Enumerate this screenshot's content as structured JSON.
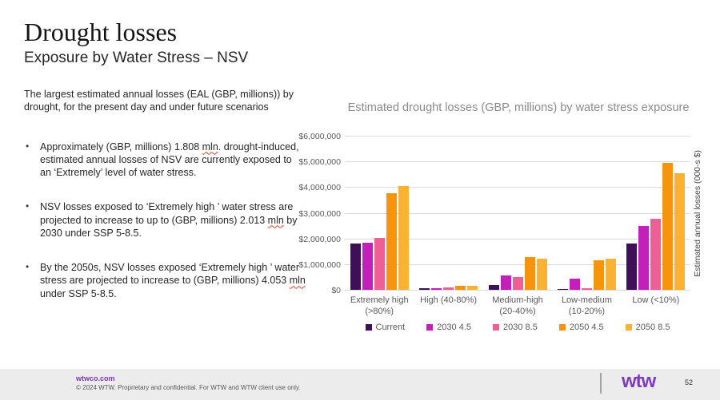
{
  "slide": {
    "title": "Drought losses",
    "subtitle": "Exposure by Water Stress – NSV"
  },
  "left_panel": {
    "intro": "The largest estimated annual losses (EAL (GBP, millions)) by drought, for the present day and under future scenarios",
    "bullets": [
      {
        "segments": [
          {
            "text": "Approximately (GBP, millions) 1.808 "
          },
          {
            "text": "mln",
            "spellcheck": true
          },
          {
            "text": ".  drought-induced, estimated annual losses of NSV are currently exposed to an ‘Extremely’ level of water stress."
          }
        ]
      },
      {
        "segments": [
          {
            "text": "NSV losses exposed to ‘Extremely high ’ water stress are projected to increase to up to (GBP, millions) 2.013 "
          },
          {
            "text": "mln",
            "spellcheck": true
          },
          {
            "text": "  by 2030  under SSP 5-8.5."
          }
        ]
      },
      {
        "segments": [
          {
            "text": "By the 2050s, NSV losses exposed ‘Extremely high ’ water stress are projected to increase to (GBP, millions) 4.053 "
          },
          {
            "text": "mln",
            "spellcheck": true
          },
          {
            "text": " under SSP 5-8.5."
          }
        ]
      }
    ]
  },
  "chart_data": {
    "type": "bar",
    "title": "Estimated drought losses (GBP, millions) by water stress exposure",
    "ylabel_right": "Estimated annual losses (000-s $)",
    "ymax": 6000000,
    "ytick_step": 1000000,
    "ytick_labels": [
      "$6,000,000",
      "$5,000,000",
      "$4,000,000",
      "$3,000,000",
      "$2,000,000",
      "$1,000,000",
      "$0"
    ],
    "grid": true,
    "legend_position": "bottom",
    "categories": [
      "Extremely high (>80%)",
      "High (40-80%)",
      "Medium-high (20-40%)",
      "Low-medium (10-20%)",
      "Low (<10%)"
    ],
    "category_label_lines": [
      [
        "Extremely high",
        "(>80%)"
      ],
      [
        "High (40-80%)"
      ],
      [
        "Medium-high",
        "(20-40%)"
      ],
      [
        "Low-medium",
        "(10-20%)"
      ],
      [
        "Low (<10%)"
      ]
    ],
    "series": [
      {
        "name": "Current",
        "color": "#3f1057",
        "values": [
          1808000,
          50000,
          200000,
          20000,
          1800000
        ]
      },
      {
        "name": "2030 4.5",
        "color": "#c320bb",
        "values": [
          1820000,
          60000,
          550000,
          450000,
          2490000
        ]
      },
      {
        "name": "2030 8.5",
        "color": "#ee6095",
        "values": [
          2013000,
          80000,
          500000,
          60000,
          2770000
        ]
      },
      {
        "name": "2050 4.5",
        "color": "#f7940d",
        "values": [
          3760000,
          160000,
          1280000,
          1150000,
          4950000
        ]
      },
      {
        "name": "2050 8.5",
        "color": "#fbb232",
        "values": [
          4053000,
          160000,
          1220000,
          1200000,
          4550000
        ]
      }
    ]
  },
  "footer": {
    "url": "wtwco.com",
    "copyright": "© 2024 WTW. Proprietary and confidential. For WTW and WTW client use only.",
    "logo_text": "wtw",
    "page_number": "52"
  }
}
